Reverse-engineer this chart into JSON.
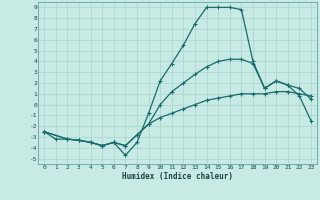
{
  "xlabel": "Humidex (Indice chaleur)",
  "xlim": [
    -0.5,
    23.5
  ],
  "ylim": [
    -5.5,
    9.5
  ],
  "xticks": [
    0,
    1,
    2,
    3,
    4,
    5,
    6,
    7,
    8,
    9,
    10,
    11,
    12,
    13,
    14,
    15,
    16,
    17,
    18,
    19,
    20,
    21,
    22,
    23
  ],
  "yticks": [
    -5,
    -4,
    -3,
    -2,
    -1,
    0,
    1,
    2,
    3,
    4,
    5,
    6,
    7,
    8,
    9
  ],
  "bg_color": "#c8eae4",
  "grid_color": "#a8d4ce",
  "line_color": "#1a6b6b",
  "line1_x": [
    0,
    1,
    2,
    3,
    4,
    5,
    6,
    7,
    8,
    9,
    10,
    11,
    12,
    13,
    14,
    15,
    16,
    17,
    18,
    19,
    20,
    21,
    22,
    23
  ],
  "line1_y": [
    -2.5,
    -3.2,
    -3.2,
    -3.3,
    -3.5,
    -3.8,
    -3.5,
    -4.7,
    -3.5,
    -0.8,
    2.2,
    3.8,
    5.5,
    7.5,
    9.0,
    9.0,
    9.0,
    8.8,
    4.0,
    1.5,
    2.2,
    1.8,
    0.8,
    -1.5
  ],
  "line2_x": [
    0,
    2,
    3,
    4,
    5,
    6,
    7,
    8,
    9,
    10,
    11,
    12,
    13,
    14,
    15,
    16,
    17,
    18,
    19,
    20,
    21,
    22,
    23
  ],
  "line2_y": [
    -2.5,
    -3.2,
    -3.3,
    -3.5,
    -3.8,
    -3.5,
    -3.8,
    -2.8,
    -1.8,
    0.0,
    1.2,
    2.0,
    2.8,
    3.5,
    4.0,
    4.2,
    4.2,
    3.8,
    1.5,
    2.2,
    1.8,
    1.5,
    0.5
  ],
  "line3_x": [
    0,
    2,
    3,
    4,
    5,
    6,
    7,
    8,
    9,
    10,
    11,
    12,
    13,
    14,
    15,
    16,
    17,
    18,
    19,
    20,
    21,
    22,
    23
  ],
  "line3_y": [
    -2.5,
    -3.2,
    -3.3,
    -3.5,
    -3.8,
    -3.5,
    -3.8,
    -2.8,
    -1.8,
    -1.2,
    -0.8,
    -0.4,
    0.0,
    0.4,
    0.6,
    0.8,
    1.0,
    1.0,
    1.0,
    1.2,
    1.2,
    1.0,
    0.8
  ]
}
